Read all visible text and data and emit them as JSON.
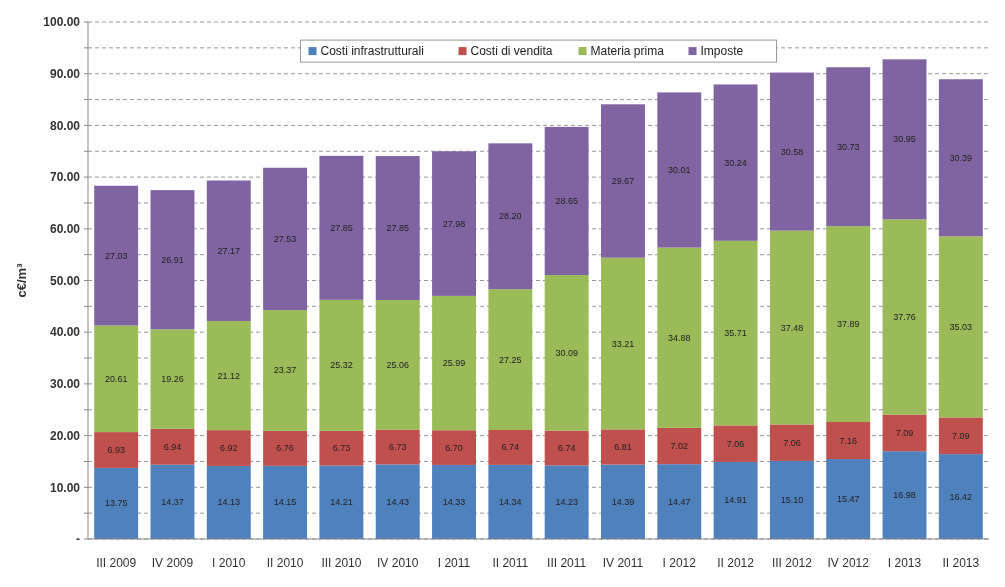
{
  "chart_data": {
    "type": "bar",
    "stacked": true,
    "ylabel": "c€/m³",
    "legend": "top",
    "grid": "y",
    "categories": [
      "III 2009",
      "IV 2009",
      "I 2010",
      "II 2010",
      "III 2010",
      "IV 2010",
      "I 2011",
      "II 2011",
      "III 2011",
      "IV 2011",
      "I 2012",
      "II 2012",
      "III 2012",
      "IV 2012",
      "I 2013",
      "II 2013"
    ],
    "ylim": [
      0,
      100
    ],
    "yticks": [
      {
        "value": 0,
        "label": "-"
      },
      {
        "value": 5,
        "label": null
      },
      {
        "value": 10,
        "label": "10.00"
      },
      {
        "value": 15,
        "label": null
      },
      {
        "value": 20,
        "label": "20.00"
      },
      {
        "value": 25,
        "label": null
      },
      {
        "value": 30,
        "label": "30.00"
      },
      {
        "value": 35,
        "label": null
      },
      {
        "value": 40,
        "label": "40.00"
      },
      {
        "value": 45,
        "label": null
      },
      {
        "value": 50,
        "label": "50.00"
      },
      {
        "value": 55,
        "label": null
      },
      {
        "value": 60,
        "label": "60.00"
      },
      {
        "value": 65,
        "label": null
      },
      {
        "value": 70,
        "label": "70.00"
      },
      {
        "value": 75,
        "label": null
      },
      {
        "value": 80,
        "label": "80.00"
      },
      {
        "value": 85,
        "label": null
      },
      {
        "value": 90,
        "label": "90.00"
      },
      {
        "value": 95,
        "label": null
      },
      {
        "value": 100,
        "label": "100.00"
      }
    ],
    "series": [
      {
        "name": "Costi infrastrutturali",
        "color": "#4f81bd",
        "values": [
          13.75,
          14.37,
          14.13,
          14.15,
          14.21,
          14.43,
          14.33,
          14.34,
          14.23,
          14.39,
          14.47,
          14.91,
          15.1,
          15.47,
          16.98,
          16.42
        ],
        "value_labels": [
          "13.75",
          "14.37",
          "14.13",
          "14.15",
          "14.21",
          "14.43",
          "14.33",
          "14.34",
          "14.23",
          "14.39",
          "14.47",
          "14.91",
          "15.10",
          "15.47",
          "16.98",
          "16.42"
        ]
      },
      {
        "name": "Costi di vendita",
        "color": "#c0504d",
        "values": [
          6.93,
          6.94,
          6.92,
          6.76,
          6.73,
          6.73,
          6.7,
          6.74,
          6.74,
          6.81,
          7.02,
          7.06,
          7.06,
          7.16,
          7.09,
          7.09
        ],
        "value_labels": [
          "6.93",
          "6.94",
          "6.92",
          "6.76",
          "6.73",
          "6.73",
          "6.70",
          "6.74",
          "6.74",
          "6.81",
          "7.02",
          "7.06",
          "7.06",
          "7.16",
          "7.09",
          "7.09"
        ]
      },
      {
        "name": "Materia prima",
        "color": "#9bbb59",
        "values": [
          20.61,
          19.26,
          21.12,
          23.37,
          25.32,
          25.06,
          25.99,
          27.25,
          30.09,
          33.21,
          34.88,
          35.71,
          37.48,
          37.89,
          37.76,
          35.03
        ],
        "value_labels": [
          "20.61",
          "19.26",
          "21.12",
          "23.37",
          "25.32",
          "25.06",
          "25.99",
          "27.25",
          "30.09",
          "33.21",
          "34.88",
          "35.71",
          "37.48",
          "37.89",
          "37.76",
          "35.03"
        ]
      },
      {
        "name": "Imposte",
        "color": "#8064a2",
        "values": [
          27.03,
          26.91,
          27.17,
          27.53,
          27.85,
          27.85,
          27.98,
          28.2,
          28.65,
          29.67,
          30.01,
          30.24,
          30.58,
          30.73,
          30.95,
          30.39
        ],
        "value_labels": [
          "27.03",
          "26.91",
          "27.17",
          "27.53",
          "27.85",
          "27.85",
          "27.98",
          "28.20",
          "28.65",
          "29.67",
          "30.01",
          "30.24",
          "30.58",
          "30.73",
          "30.95",
          "30.39"
        ]
      }
    ]
  }
}
